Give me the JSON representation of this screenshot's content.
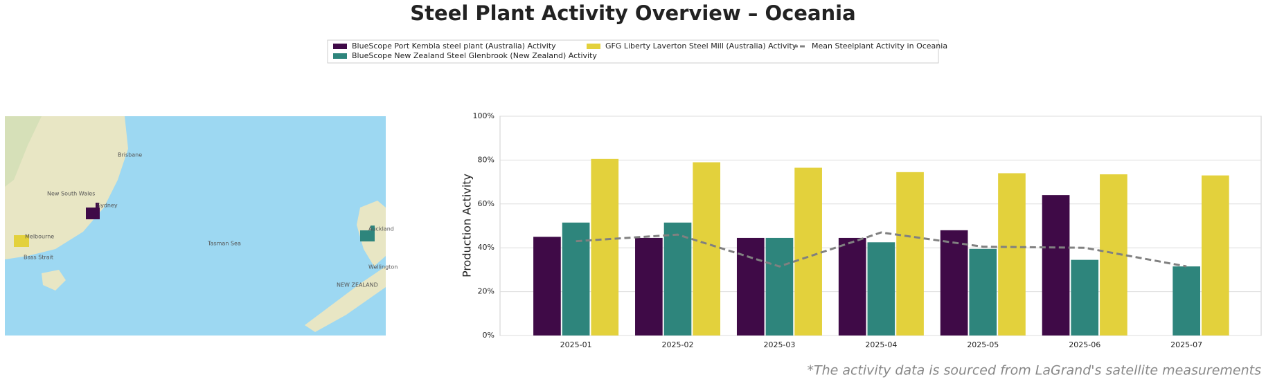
{
  "chart_data": {
    "type": "bar",
    "title": "Steel Plant Activity Overview – Oceania",
    "y_label": "Production Activity",
    "footnote": "*The activity data is sourced from LaGrand's satellite measurements",
    "categories": [
      "2025-01",
      "2025-02",
      "2025-03",
      "2025-04",
      "2025-05",
      "2025-06",
      "2025-07"
    ],
    "series": [
      {
        "name": "BlueScope Port Kembla steel plant (Australia) Activity",
        "color": "#3f0a47",
        "values": [
          45,
          44.5,
          44.5,
          44.5,
          48,
          64,
          null
        ]
      },
      {
        "name": "BlueScope New Zealand Steel Glenbrook (New Zealand) Activity",
        "color": "#2e857c",
        "values": [
          51.5,
          51.5,
          44.5,
          42.5,
          39.5,
          34.5,
          31.5
        ]
      },
      {
        "name": "GFG Liberty Laverton Steel Mill (Australia) Activity",
        "color": "#e3d13c",
        "values": [
          80.5,
          79,
          76.5,
          74.5,
          74,
          73.5,
          73
        ]
      },
      {
        "name": "Mean Steelplant Activity in Oceania",
        "type": "line",
        "color": "#808080",
        "values": [
          43,
          46,
          31.5,
          47,
          40.5,
          40,
          31.5
        ]
      }
    ],
    "ylim": [
      0,
      100
    ],
    "yticks": [
      {
        "value": 0,
        "label": "0%"
      },
      {
        "value": 20,
        "label": "20%"
      },
      {
        "value": 40,
        "label": "40%"
      },
      {
        "value": 60,
        "label": "60%"
      },
      {
        "value": 80,
        "label": "80%"
      },
      {
        "value": 100,
        "label": "100%"
      }
    ],
    "grid": true,
    "legend": "top",
    "map_labels": [
      "Brisbane",
      "Sydney",
      "Melbourne",
      "New South Wales",
      "Bass Strait",
      "Tasman Sea",
      "NEW ZEALAND",
      "Auckland",
      "Wellington"
    ]
  }
}
